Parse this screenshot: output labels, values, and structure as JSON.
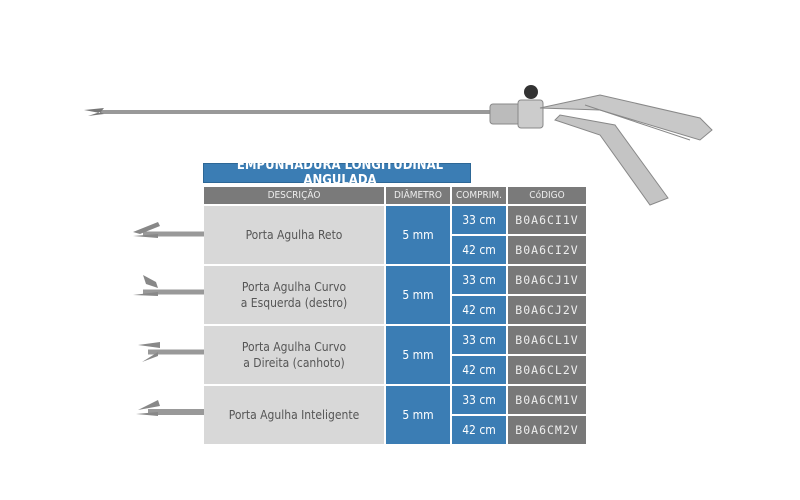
{
  "title": "EMPUNHADURA LONGITUDINAL ANGULADA",
  "headers": [
    "DESCRIÇÃO",
    "DIÂMETRO",
    "COMPRIM.",
    "CóDIGO"
  ],
  "rows": [
    {
      "desc1": "Porta Agulha Reto",
      "desc2": "",
      "diameter": "5 mm",
      "lengths": [
        "33 cm",
        "42 cm"
      ],
      "codes": [
        "B0A6CI1V",
        "B0A6CI2V"
      ]
    },
    {
      "desc1": "Porta Agulha Curvo",
      "desc2": "a Esquerda (destro)",
      "diameter": "5 mm",
      "lengths": [
        "33 cm",
        "42 cm"
      ],
      "codes": [
        "B0A6CJ1V",
        "B0A6CJ2V"
      ]
    },
    {
      "desc1": "Porta Agulha Curvo",
      "desc2": "a Direita (canhoto)",
      "diameter": "5 mm",
      "lengths": [
        "33 cm",
        "42 cm"
      ],
      "codes": [
        "B0A6CL1V",
        "B0A6CL2V"
      ]
    },
    {
      "desc1": "Porta Agulha Inteligente",
      "desc2": "",
      "diameter": "5 mm",
      "lengths": [
        "33 cm",
        "42 cm"
      ],
      "codes": [
        "B0A6CM1V",
        "B0A6CM2V"
      ]
    }
  ],
  "colors": {
    "blue": "#3b7db4",
    "gray": "#787878",
    "light": "#d8d8d8"
  }
}
